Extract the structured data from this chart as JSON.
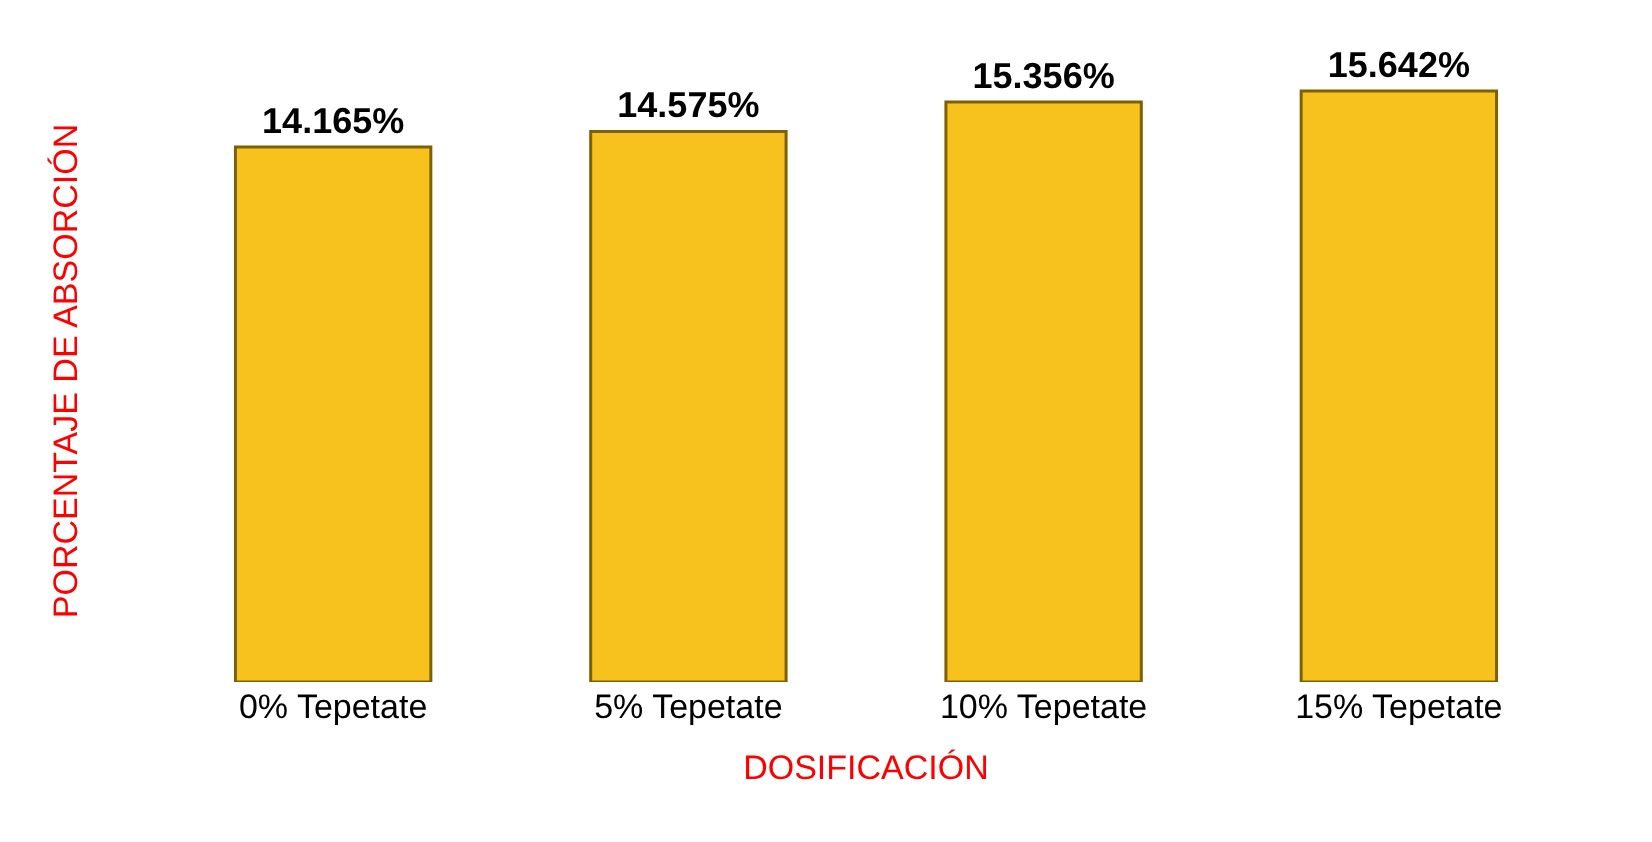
{
  "chart_data": {
    "type": "bar",
    "xlabel": "DOSIFICACIÓN",
    "ylabel": "PORCENTAJE DE ABSORCIÓN",
    "categories": [
      "0% Tepetate",
      "5% Tepetate",
      "10% Tepetate",
      "15% Tepetate"
    ],
    "values": [
      14.165,
      14.575,
      15.356,
      15.642
    ],
    "value_labels": [
      "14.165%",
      "14.575%",
      "15.356%",
      "15.642%"
    ],
    "color": "#f8c21e"
  }
}
